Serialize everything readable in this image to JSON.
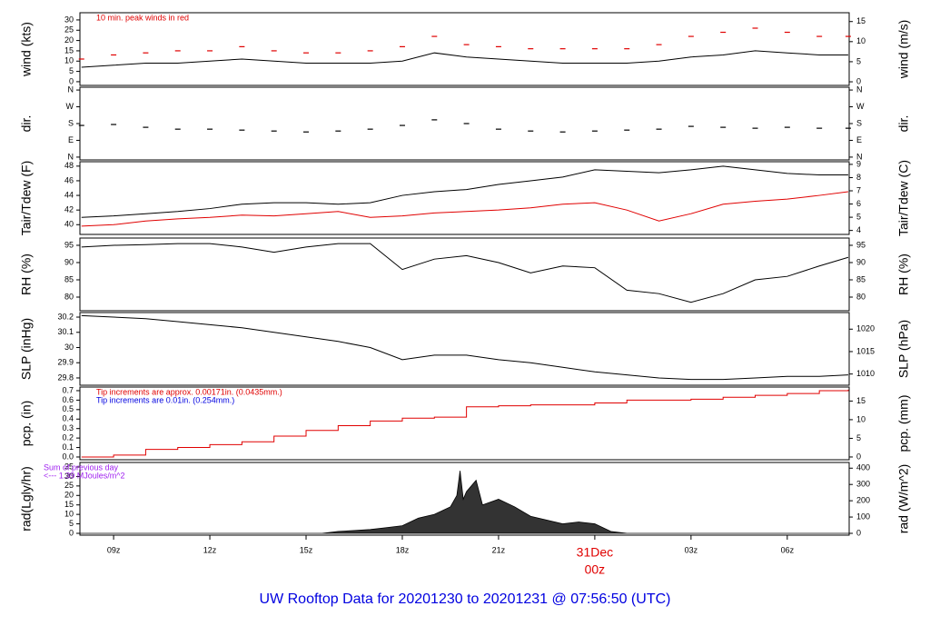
{
  "chart_data": [
    {
      "type": "line",
      "ylabel": "wind (kts)",
      "y2label": "wind (m/s)",
      "ylim": [
        -1.8,
        33.5
      ],
      "yticks": [
        0,
        5,
        10,
        15,
        20,
        25,
        30
      ],
      "y2lim": [
        -0.9,
        17.2
      ],
      "y2ticks": [
        0,
        5,
        10,
        15
      ],
      "annotations": [
        {
          "text": "10 min. peak winds in red",
          "color": "#e00000"
        }
      ],
      "x": [
        8,
        9,
        10,
        11,
        12,
        13,
        14,
        15,
        16,
        17,
        18,
        19,
        20,
        21,
        22,
        23,
        24,
        25,
        26,
        27,
        28,
        29,
        30,
        31,
        31.9
      ],
      "series": [
        {
          "color": "#000000",
          "style": "line",
          "values": [
            7,
            8,
            9,
            9,
            10,
            11,
            10,
            9,
            9,
            9,
            10,
            14,
            12,
            11,
            10,
            9,
            9,
            9,
            10,
            12,
            13,
            15,
            14,
            13,
            13
          ]
        },
        {
          "color": "#e00000",
          "style": "dash",
          "values": [
            11,
            13,
            14,
            15,
            15,
            17,
            15,
            14,
            14,
            15,
            17,
            22,
            18,
            17,
            16,
            16,
            16,
            16,
            18,
            22,
            24,
            26,
            24,
            22,
            22
          ]
        }
      ]
    },
    {
      "type": "line",
      "ylabel": "dir.",
      "y2label": "dir.",
      "ylim": [
        -15,
        375
      ],
      "yticks": [
        {
          "value": 0,
          "label": "N"
        },
        {
          "value": 90,
          "label": "E"
        },
        {
          "value": 180,
          "label": "S"
        },
        {
          "value": 270,
          "label": "W"
        },
        {
          "value": 360,
          "label": "N"
        }
      ],
      "y2lim": [
        -15,
        375
      ],
      "y2ticks": [
        {
          "value": 0,
          "label": "N"
        },
        {
          "value": 90,
          "label": "E"
        },
        {
          "value": 180,
          "label": "S"
        },
        {
          "value": 270,
          "label": "W"
        },
        {
          "value": 360,
          "label": "N"
        }
      ],
      "x": [
        8,
        9,
        10,
        11,
        12,
        13,
        14,
        15,
        16,
        17,
        18,
        19,
        20,
        21,
        22,
        23,
        24,
        25,
        26,
        27,
        28,
        29,
        30,
        31,
        31.9
      ],
      "series": [
        {
          "color": "#000000",
          "style": "dash",
          "values": [
            170,
            175,
            160,
            150,
            150,
            145,
            140,
            135,
            140,
            150,
            170,
            200,
            180,
            150,
            140,
            135,
            140,
            145,
            150,
            165,
            160,
            155,
            160,
            155,
            155
          ]
        }
      ]
    },
    {
      "type": "line",
      "ylabel": "Tair/Tdew (F)",
      "y2label": "Tair/Tdew (C)",
      "ylim": [
        38.67,
        48.6
      ],
      "yticks": [
        40,
        42,
        44,
        46,
        48
      ],
      "y2lim": [
        3.7,
        9.2
      ],
      "y2ticks": [
        4,
        5,
        6,
        7,
        8,
        9
      ],
      "x": [
        8,
        9,
        10,
        11,
        12,
        13,
        14,
        15,
        16,
        17,
        18,
        19,
        20,
        21,
        22,
        23,
        24,
        25,
        26,
        27,
        28,
        29,
        30,
        31,
        31.9
      ],
      "series": [
        {
          "color": "#000000",
          "style": "line",
          "values": [
            41,
            41.2,
            41.5,
            41.8,
            42.2,
            42.8,
            43,
            43,
            42.8,
            43,
            44,
            44.5,
            44.8,
            45.5,
            46,
            46.5,
            47.5,
            47.3,
            47.1,
            47.5,
            48,
            47.5,
            47,
            46.8,
            46.8
          ]
        },
        {
          "color": "#e00000",
          "style": "line",
          "values": [
            39.8,
            40,
            40.5,
            40.8,
            41,
            41.3,
            41.2,
            41.5,
            41.8,
            41,
            41.2,
            41.6,
            41.8,
            42,
            42.3,
            42.8,
            43,
            42,
            40.5,
            41.5,
            42.8,
            43.2,
            43.5,
            44,
            44.5
          ]
        }
      ]
    },
    {
      "type": "line",
      "ylabel": "RH (%)",
      "y2label": "RH (%)",
      "ylim": [
        76.05,
        97.1
      ],
      "yticks": [
        80,
        85,
        90,
        95
      ],
      "y2lim": [
        76.05,
        97.1
      ],
      "y2ticks": [
        80,
        85,
        90,
        95
      ],
      "x": [
        8,
        9,
        10,
        11,
        12,
        13,
        14,
        15,
        16,
        17,
        18,
        19,
        20,
        21,
        22,
        23,
        24,
        25,
        26,
        27,
        28,
        29,
        30,
        31,
        31.9
      ],
      "series": [
        {
          "color": "#000000",
          "style": "line",
          "values": [
            94.5,
            95,
            95.2,
            95.5,
            95.5,
            94.5,
            93,
            94.5,
            95.5,
            95.5,
            88,
            91,
            92,
            90,
            87,
            89,
            88.5,
            82,
            81,
            78.5,
            81,
            85,
            86,
            89,
            91.5
          ]
        }
      ]
    },
    {
      "type": "line",
      "ylabel": "SLP (inHg)",
      "y2label": "SLP (hPa)",
      "ylim": [
        29.752,
        30.23
      ],
      "yticks": [
        29.8,
        29.9,
        30.0,
        {
          "value": 30.1,
          "label": "30.1"
        },
        30.2
      ],
      "y2lim": [
        1007.5,
        1023.7
      ],
      "y2ticks": [
        1010,
        1015,
        1020
      ],
      "x": [
        8,
        9,
        10,
        11,
        12,
        13,
        14,
        15,
        16,
        17,
        18,
        19,
        20,
        21,
        22,
        23,
        24,
        25,
        26,
        27,
        28,
        29,
        30,
        31,
        31.9
      ],
      "series": [
        {
          "color": "#000000",
          "style": "line",
          "values": [
            30.21,
            30.2,
            30.19,
            30.17,
            30.15,
            30.13,
            30.1,
            30.07,
            30.04,
            30.0,
            29.92,
            29.95,
            29.95,
            29.92,
            29.9,
            29.87,
            29.84,
            29.82,
            29.8,
            29.79,
            29.79,
            29.8,
            29.81,
            29.81,
            29.82
          ]
        }
      ]
    },
    {
      "type": "step",
      "ylabel": "pcp. (in)",
      "y2label": "pcp. (mm)",
      "ylim": [
        -0.029,
        0.738
      ],
      "yticks": [
        {
          "value": 0,
          "label": "0.0"
        },
        0.1,
        0.2,
        0.3,
        0.4,
        0.5,
        0.6,
        0.7
      ],
      "y2lim": [
        -0.74,
        18.75
      ],
      "y2ticks": [
        0,
        5,
        10,
        15
      ],
      "annotations": [
        {
          "text": "Tip increments are approx. 0.00171in. (0.0435mm.)",
          "color": "#e00000"
        },
        {
          "text": "Tip increments are 0.01in. (0.254mm.)",
          "color": "#0000e0"
        }
      ],
      "x": [
        8,
        9,
        10,
        11,
        12,
        13,
        14,
        15,
        16,
        17,
        18,
        19,
        20,
        21,
        22,
        23,
        24,
        25,
        26,
        27,
        28,
        29,
        30,
        31,
        31.9
      ],
      "series": [
        {
          "color": "#e00000",
          "style": "line",
          "values": [
            0,
            0.02,
            0.08,
            0.1,
            0.13,
            0.16,
            0.22,
            0.28,
            0.33,
            0.38,
            0.41,
            0.42,
            0.53,
            0.54,
            0.55,
            0.55,
            0.57,
            0.6,
            0.6,
            0.61,
            0.63,
            0.65,
            0.67,
            0.7,
            0.71
          ]
        }
      ]
    },
    {
      "type": "area",
      "ylabel": "rad(Lgly/hr)",
      "y2label": "rad (W/m^2)",
      "ylim": [
        -0.96,
        37.4
      ],
      "yticks": [
        0,
        5,
        10,
        15,
        20,
        25,
        30,
        35
      ],
      "y2lim": [
        -11.2,
        435
      ],
      "y2ticks": [
        0,
        100,
        200,
        300,
        400
      ],
      "annotations": [
        {
          "text": "Sum of previous day",
          "color": "#a020f0"
        },
        {
          "text": "<--- 1.39 MJoules/m^2",
          "color": "#a020f0"
        }
      ],
      "x": [
        7.95,
        15.5,
        16,
        16.5,
        17,
        17.5,
        18,
        18.5,
        19,
        19.5,
        19.7,
        19.8,
        19.9,
        20,
        20.3,
        20.5,
        21,
        21.5,
        22,
        22.5,
        23,
        23.5,
        24,
        24.5,
        25,
        31.93
      ],
      "series": [
        {
          "color": "#000000",
          "style": "area",
          "values": [
            0,
            0,
            1,
            1.5,
            2,
            3,
            4,
            8,
            10,
            14,
            20,
            33,
            18,
            22,
            28,
            15,
            18,
            14,
            9,
            7,
            5,
            6,
            5,
            1,
            0,
            0
          ]
        }
      ],
      "xlim": [
        7.95,
        31.93
      ],
      "xticks": [
        {
          "value": 9,
          "label": "09z"
        },
        {
          "value": 12,
          "label": "12z"
        },
        {
          "value": 15,
          "label": "15z"
        },
        {
          "value": 18,
          "label": "18z"
        },
        {
          "value": 21,
          "label": "21z"
        },
        {
          "value": 24,
          "label": "00z"
        },
        {
          "value": 27,
          "label": "03z"
        },
        {
          "value": 30,
          "label": "06z"
        }
      ],
      "date_label": "31Dec",
      "title": "UW Rooftop Data for 20201230  to  20201231 @ 07:56:50  (UTC)"
    }
  ]
}
